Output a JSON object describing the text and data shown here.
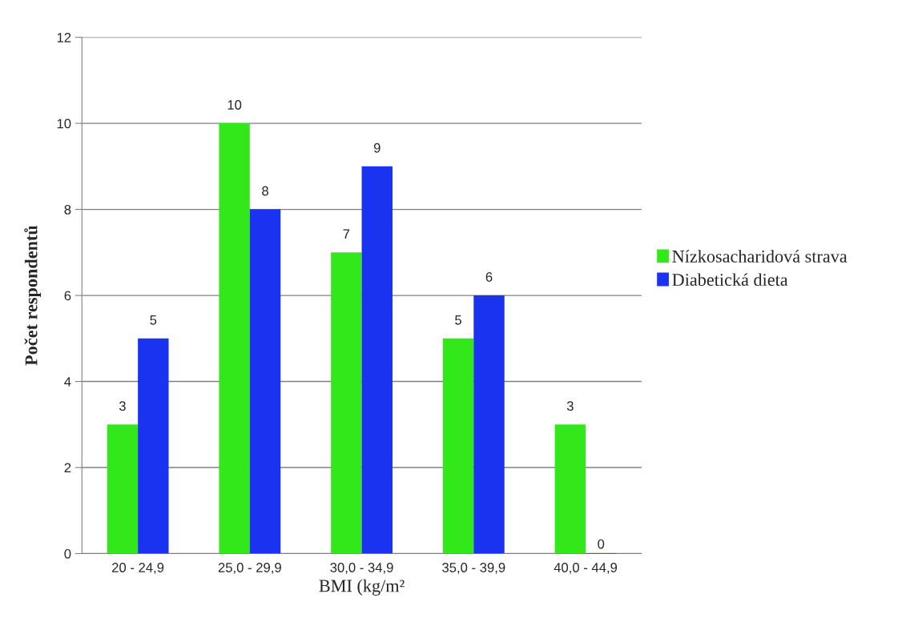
{
  "chart_data": {
    "type": "bar",
    "categories": [
      "20 - 24,9",
      "25,0 - 29,9",
      "30,0 - 34,9",
      "35,0 - 39,9",
      "40,0 - 44,9"
    ],
    "series": [
      {
        "name": "Nízkosacharidová strava",
        "color": "#33e81a",
        "values": [
          3,
          10,
          7,
          5,
          3
        ]
      },
      {
        "name": "Diabetická dieta",
        "color": "#1a33f0",
        "values": [
          5,
          8,
          9,
          6,
          0
        ]
      }
    ],
    "xlabel": "BMI (kg/m²",
    "ylabel": "Počet respondentů",
    "ylim": [
      0,
      12
    ],
    "yticks": [
      0,
      2,
      4,
      6,
      8,
      10,
      12
    ],
    "grid": "y",
    "legend": "right",
    "data_labels": true
  }
}
